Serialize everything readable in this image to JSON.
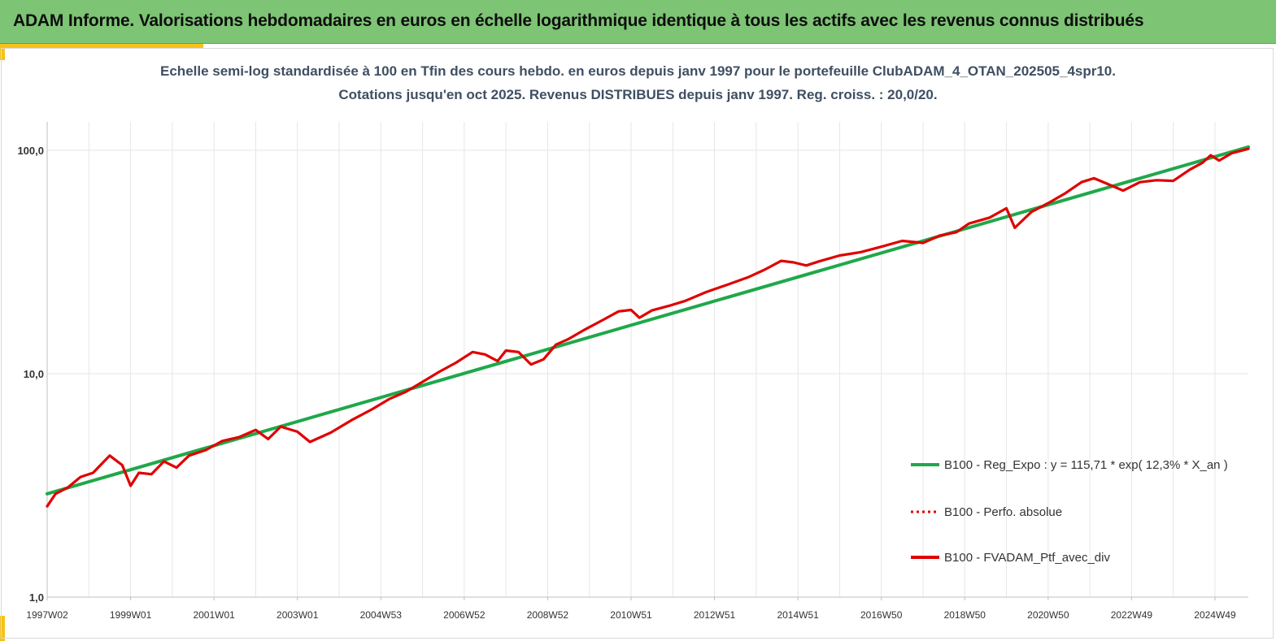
{
  "header": {
    "title": "ADAM Informe. Valorisations hebdomadaires en euros en échelle logarithmique identique à tous les actifs avec les revenus connus distribués"
  },
  "chart_data": {
    "type": "line",
    "title": "Echelle semi-log standardisée à 100 en Tfin des cours hebdo. en euros depuis janv 1997 pour le portefeuille ClubADAM_4_OTAN_202505_4spr10.",
    "subtitle": "Cotations jusqu'en oct 2025. Revenus DISTRIBUES depuis janv 1997. Reg. croiss. : 20,0/20.",
    "xlabel": "",
    "ylabel": "",
    "y_scale": "log",
    "ylim": [
      1,
      100
    ],
    "xlim": [
      1997.0,
      2025.8
    ],
    "grid": {
      "vertical": true,
      "horizontal": true
    },
    "y_ticks": [
      {
        "value": 1,
        "label": "1,0"
      },
      {
        "value": 10,
        "label": "10,0"
      },
      {
        "value": 100,
        "label": "100,0"
      }
    ],
    "x_ticks": [
      {
        "value": 1997.0,
        "label": "1997W02"
      },
      {
        "value": 1999.0,
        "label": "1999W01"
      },
      {
        "value": 2001.0,
        "label": "2001W01"
      },
      {
        "value": 2003.0,
        "label": "2003W01"
      },
      {
        "value": 2005.0,
        "label": "2004W53"
      },
      {
        "value": 2007.0,
        "label": "2006W52"
      },
      {
        "value": 2009.0,
        "label": "2008W52"
      },
      {
        "value": 2011.0,
        "label": "2010W51"
      },
      {
        "value": 2013.0,
        "label": "2012W51"
      },
      {
        "value": 2015.0,
        "label": "2014W51"
      },
      {
        "value": 2017.0,
        "label": "2016W50"
      },
      {
        "value": 2019.0,
        "label": "2018W50"
      },
      {
        "value": 2021.0,
        "label": "2020W50"
      },
      {
        "value": 2023.0,
        "label": "2022W49"
      },
      {
        "value": 2025.0,
        "label": "2024W49"
      }
    ],
    "legend_position": "bottom-right",
    "series": [
      {
        "name": "B100 - Reg_Expo : y = 115,71 * exp( 12,3% *  X_an )",
        "color": "#1fa84a",
        "style": "solid",
        "x": [
          1997.0,
          2025.8
        ],
        "y": [
          2.9,
          103.5
        ]
      },
      {
        "name": "B100 - Perfo. absolue",
        "color": "#e00000",
        "style": "dotted",
        "x": [],
        "y": []
      },
      {
        "name": "B100 - FVADAM_Ptf_avec_div",
        "color": "#e00000",
        "style": "solid",
        "x": [
          1997.0,
          1997.2,
          1997.5,
          1997.8,
          1998.1,
          1998.5,
          1998.8,
          1999.0,
          1999.2,
          1999.5,
          1999.8,
          2000.1,
          2000.4,
          2000.8,
          2001.2,
          2001.6,
          2002.0,
          2002.3,
          2002.6,
          2003.0,
          2003.3,
          2003.8,
          2004.3,
          2004.8,
          2005.2,
          2005.6,
          2006.0,
          2006.4,
          2006.8,
          2007.2,
          2007.5,
          2007.8,
          2008.0,
          2008.3,
          2008.6,
          2008.9,
          2009.2,
          2009.5,
          2009.9,
          2010.3,
          2010.7,
          2011.0,
          2011.2,
          2011.5,
          2011.9,
          2012.3,
          2012.8,
          2013.3,
          2013.8,
          2014.2,
          2014.6,
          2014.9,
          2015.2,
          2015.5,
          2016.0,
          2016.5,
          2017.0,
          2017.5,
          2018.0,
          2018.4,
          2018.8,
          2019.1,
          2019.6,
          2020.0,
          2020.2,
          2020.6,
          2021.0,
          2021.4,
          2021.8,
          2022.1,
          2022.4,
          2022.8,
          2023.2,
          2023.6,
          2024.0,
          2024.4,
          2024.7,
          2024.9,
          2025.1,
          2025.4,
          2025.8
        ],
        "y": [
          2.55,
          2.9,
          3.1,
          3.45,
          3.6,
          4.3,
          3.9,
          3.15,
          3.6,
          3.55,
          4.05,
          3.8,
          4.3,
          4.55,
          5.0,
          5.2,
          5.6,
          5.1,
          5.8,
          5.5,
          4.95,
          5.45,
          6.2,
          6.95,
          7.7,
          8.3,
          9.2,
          10.2,
          11.2,
          12.5,
          12.2,
          11.4,
          12.7,
          12.5,
          11.0,
          11.6,
          13.5,
          14.3,
          15.8,
          17.3,
          19.0,
          19.3,
          17.8,
          19.2,
          20.1,
          21.2,
          23.2,
          25.0,
          27.0,
          29.2,
          32.0,
          31.5,
          30.5,
          31.8,
          33.8,
          35.0,
          37.0,
          39.3,
          38.5,
          41.5,
          43.0,
          47.0,
          50.0,
          55.0,
          45.0,
          53.0,
          58.0,
          64.0,
          72.0,
          75.0,
          71.0,
          66.0,
          72.0,
          73.5,
          73.0,
          82.0,
          88.0,
          95.0,
          90.0,
          97.0,
          101.5
        ]
      }
    ]
  }
}
